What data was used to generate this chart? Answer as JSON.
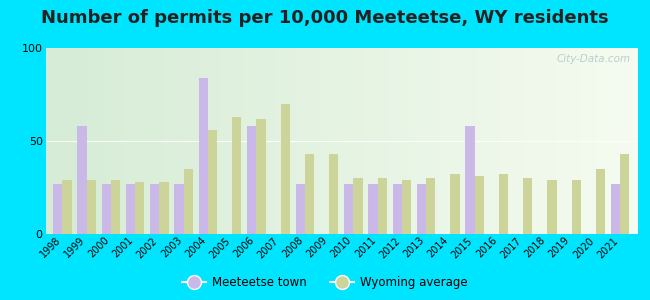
{
  "title": "Number of permits per 10,000 Meeteetse, WY residents",
  "years": [
    1998,
    1999,
    2000,
    2001,
    2002,
    2003,
    2004,
    2005,
    2006,
    2007,
    2008,
    2009,
    2010,
    2011,
    2012,
    2013,
    2014,
    2015,
    2016,
    2017,
    2018,
    2019,
    2020,
    2021
  ],
  "meeteetse": [
    27,
    58,
    27,
    27,
    27,
    27,
    84,
    0,
    58,
    0,
    27,
    0,
    27,
    27,
    27,
    27,
    0,
    58,
    0,
    0,
    0,
    0,
    0,
    27
  ],
  "wyoming": [
    29,
    29,
    29,
    28,
    28,
    35,
    56,
    63,
    62,
    70,
    43,
    43,
    30,
    30,
    29,
    30,
    32,
    31,
    32,
    30,
    29,
    29,
    35,
    43
  ],
  "meeteetse_color": "#c9b8e8",
  "wyoming_color": "#cdd49a",
  "outer_bg": "#00e5ff",
  "plot_bg_left": "#d6ecd6",
  "plot_bg_right": "#f5fbf0",
  "ylim": [
    0,
    100
  ],
  "yticks": [
    0,
    50,
    100
  ],
  "bar_width": 0.38,
  "title_fontsize": 13,
  "legend_labels": [
    "Meeteetse town",
    "Wyoming average"
  ],
  "legend_marker": [
    "o",
    "o"
  ]
}
